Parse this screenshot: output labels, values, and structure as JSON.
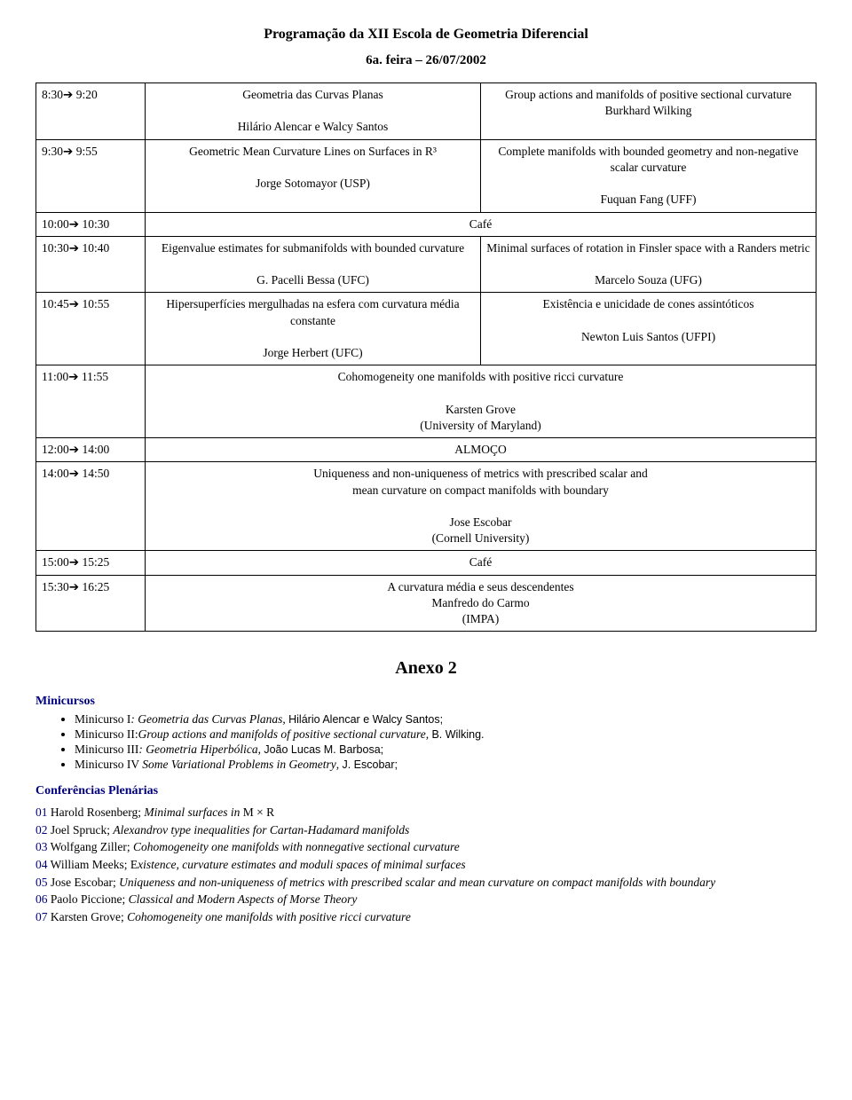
{
  "header": {
    "title": "Programação da XII Escola de Geometria Diferencial",
    "subtitle": "6a. feira – 26/07/2002"
  },
  "schedule": {
    "rows": [
      {
        "time": "8:30→ 9:20",
        "left": "Geometria das Curvas Planas\n\nHilário Alencar e Walcy Santos",
        "right": "Group actions and manifolds of positive sectional curvature\nBurkhard Wilking"
      },
      {
        "time": "9:30→ 9:55",
        "left": "Geometric Mean Curvature Lines on Surfaces in R³\n\nJorge Sotomayor (USP)",
        "right": "Complete manifolds with bounded geometry and non-negative scalar curvature\n\nFuquan Fang (UFF)"
      },
      {
        "time": "10:00→ 10:30",
        "center": "Café"
      },
      {
        "time": "10:30→ 10:40",
        "left": "Eigenvalue estimates for submanifolds with bounded curvature\n\nG. Pacelli Bessa (UFC)",
        "right": "Minimal surfaces of rotation in Finsler space with a Randers metric\n\nMarcelo Souza (UFG)"
      },
      {
        "time": "10:45→ 10:55",
        "left": "Hipersuperfícies mergulhadas na esfera com curvatura média constante\n\nJorge Herbert (UFC)",
        "right": "Existência e unicidade de cones assintóticos\n\nNewton Luis Santos (UFPI)"
      },
      {
        "time": "11:00→ 11:55",
        "center": "Cohomogeneity one manifolds with positive ricci curvature\n\nKarsten Grove\n(University of Maryland)"
      },
      {
        "time": "12:00→ 14:00",
        "center": "ALMOÇO"
      },
      {
        "time": "14:00→ 14:50",
        "center": "Uniqueness and non-uniqueness of metrics with prescribed scalar and\nmean curvature on compact manifolds with boundary\n\nJose Escobar\n(Cornell University)"
      },
      {
        "time": "15:00→ 15:25",
        "center": "Café"
      },
      {
        "time": "15:30→ 16:25",
        "center": "A curvatura média e seus descendentes\nManfredo do Carmo\n(IMPA)"
      }
    ]
  },
  "anexo": {
    "title": "Anexo 2",
    "minicursos": {
      "heading": "Minicursos",
      "items": [
        {
          "pre": "Minicurso I",
          "italic": ": Geometria das Curvas Planas",
          "tail": ", ",
          "v": "Hilário Alencar e Walcy Santos;"
        },
        {
          "pre": "Minicurso II:",
          "italic": "Group actions and manifolds of positive sectional curvature, ",
          "tail": "",
          "v": "B. Wilking."
        },
        {
          "pre": "Minicurso III",
          "italic": ": Geometria Hiperbólica",
          "tail": ", ",
          "v": "João Lucas M. Barbosa;"
        },
        {
          "pre": "Minicurso IV ",
          "italic": "Some Variational Problems in Geometry",
          "tail": ", ",
          "v": "J. Escobar;"
        }
      ]
    },
    "conferencias": {
      "heading": "Conferências Plenárias",
      "items": [
        {
          "num": "01",
          "name": " Harold Rosenberg; ",
          "italic": "Minimal surfaces in ",
          "tail": "M × R"
        },
        {
          "num": "02",
          "name": " Joel Spruck; ",
          "italic": "Alexandrov type inequalities for Cartan-Hadamard manifolds",
          "tail": ""
        },
        {
          "num": "03",
          "name": " Wolfgang Ziller; ",
          "italic": "Cohomogeneity one manifolds with nonnegative sectional curvature",
          "tail": ""
        },
        {
          "num": "04",
          "name": " William Meeks; E",
          "italic": "xistence, curvature estimates and moduli spaces of minimal surfaces",
          "tail": ""
        },
        {
          "num": "05",
          "name": " Jose Escobar; ",
          "italic": "Uniqueness and non-uniqueness of metrics with prescribed scalar and mean curvature on compact manifolds with boundary",
          "tail": ""
        },
        {
          "num": "06",
          "name": " Paolo Piccione; ",
          "italic": "Classical and Modern Aspects of Morse Theory",
          "tail": ""
        },
        {
          "num": "07",
          "name": " Karsten Grove; ",
          "italic": "Cohomogeneity one manifolds with positive ricci curvature",
          "tail": ""
        }
      ]
    }
  }
}
